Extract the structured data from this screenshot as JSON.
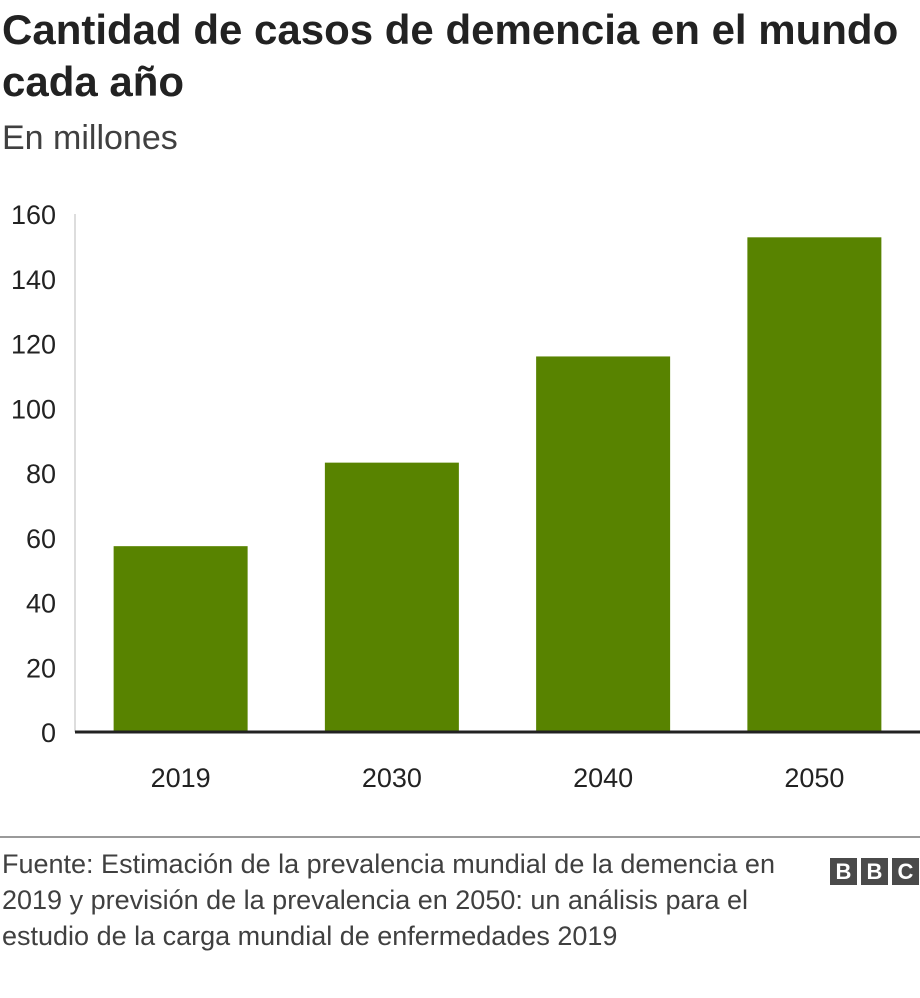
{
  "header": {
    "title": "Cantidad de casos de demencia en el mundo cada año",
    "subtitle": "En millones"
  },
  "footer": {
    "source": "Fuente: Estimación de la prevalencia mundial de la demencia en 2019 y previsión de la prevalencia en 2050: un análisis para el estudio de la carga mundial de enfermedades 2019",
    "logo_letters": [
      "B",
      "B",
      "C"
    ]
  },
  "colors": {
    "bar": "#588300",
    "axis": "#222222",
    "gridline": "#dddddd",
    "text": "#222222"
  },
  "chart_data": {
    "type": "bar",
    "title": "Cantidad de casos de demencia en el mundo cada año",
    "subtitle": "En millones",
    "categories": [
      "2019",
      "2030",
      "2040",
      "2050"
    ],
    "values": [
      57.4,
      83.2,
      116,
      152.8
    ],
    "ylim": [
      0,
      160
    ],
    "yticks": [
      0,
      20,
      40,
      60,
      80,
      100,
      120,
      140,
      160
    ],
    "grid": false,
    "legend": "none"
  }
}
